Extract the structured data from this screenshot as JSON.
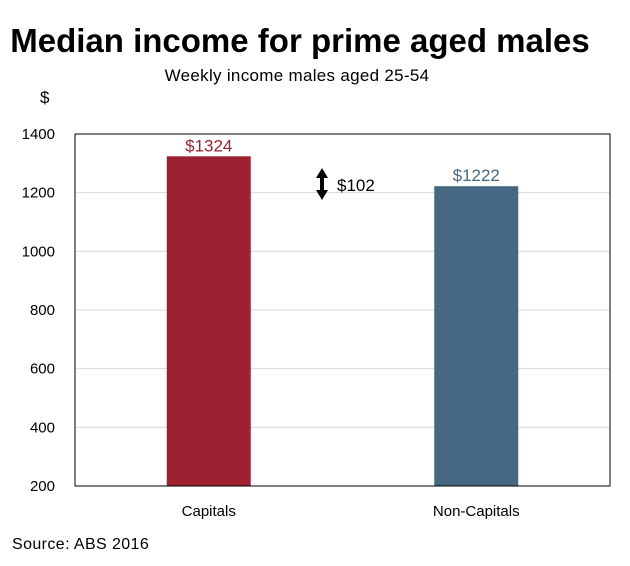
{
  "chart_data": {
    "type": "bar",
    "title": "Median income for prime aged males",
    "subtitle": "Weekly income males aged 25-54",
    "ylabel": "$",
    "xlabel": "",
    "categories": [
      "Capitals",
      "Non-Capitals"
    ],
    "values": [
      1324,
      1222
    ],
    "data_labels": [
      "$1324",
      "$1222"
    ],
    "colors": [
      "#9e2132",
      "#476882"
    ],
    "ylim": [
      200,
      1400
    ],
    "yticks": [
      200,
      400,
      600,
      800,
      1000,
      1200,
      1400
    ],
    "grid": true,
    "legend": "none",
    "annotation": {
      "text": "$102",
      "value": 102
    },
    "source": "Source: ABS 2016"
  }
}
